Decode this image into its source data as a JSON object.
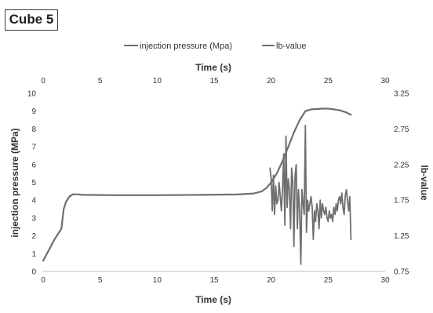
{
  "panel_label": "Cube 5",
  "chart_data": {
    "type": "line",
    "title": "",
    "legend": {
      "placement": "top",
      "entries": [
        "injection pressure (Mpa)",
        "lb-value"
      ]
    },
    "x_axis_top": {
      "label": "Time (s)",
      "range": [
        0,
        30
      ],
      "ticks": [
        0,
        5,
        10,
        15,
        20,
        25,
        30
      ]
    },
    "x_axis_bottom": {
      "label": "Time (s)",
      "range": [
        0,
        30
      ],
      "ticks": [
        0,
        5,
        10,
        15,
        20,
        25,
        30
      ]
    },
    "y_axis_left": {
      "label": "injection pressure (MPa)",
      "range": [
        0,
        10
      ],
      "ticks": [
        0,
        1,
        2,
        3,
        4,
        5,
        6,
        7,
        8,
        9,
        10
      ]
    },
    "y_axis_right": {
      "label": "lb-value",
      "range": [
        0.75,
        3.25
      ],
      "ticks": [
        "0.75",
        "1.25",
        "1.75",
        "2.25",
        "2.75",
        "3.25"
      ]
    },
    "grid": false,
    "series": [
      {
        "name": "injection pressure (Mpa)",
        "axis": "left",
        "color": "#6f6f6f",
        "x": [
          0,
          0.5,
          1.0,
          1.6,
          1.8,
          2.0,
          2.3,
          2.6,
          2.9,
          3.5,
          6,
          10,
          14,
          17,
          18.5,
          19.2,
          19.6,
          20.0,
          20.5,
          21.0,
          21.5,
          22.0,
          22.5,
          23.0,
          23.5,
          24.0,
          24.5,
          25.0,
          25.5,
          26.0,
          26.5,
          27.0
        ],
        "y": [
          0.6,
          1.2,
          1.8,
          2.4,
          3.5,
          3.9,
          4.2,
          4.33,
          4.33,
          4.3,
          4.28,
          4.28,
          4.3,
          4.32,
          4.38,
          4.5,
          4.7,
          5.0,
          5.5,
          6.2,
          7.0,
          7.8,
          8.5,
          9.0,
          9.1,
          9.12,
          9.14,
          9.14,
          9.1,
          9.05,
          8.95,
          8.8
        ]
      },
      {
        "name": "lb-value",
        "axis": "right",
        "color": "#6f6f6f",
        "x": [
          19.9,
          20.0,
          20.1,
          20.2,
          20.3,
          20.4,
          20.5,
          20.6,
          20.7,
          20.8,
          20.9,
          21.0,
          21.1,
          21.2,
          21.3,
          21.4,
          21.5,
          21.6,
          21.7,
          21.8,
          21.9,
          22.0,
          22.1,
          22.2,
          22.3,
          22.4,
          22.5,
          22.6,
          22.7,
          22.8,
          22.9,
          23.0,
          23.1,
          23.2,
          23.3,
          23.4,
          23.5,
          23.6,
          23.7,
          23.8,
          23.9,
          24.0,
          24.1,
          24.2,
          24.3,
          24.4,
          24.5,
          24.6,
          24.7,
          24.8,
          24.9,
          25.0,
          25.1,
          25.2,
          25.3,
          25.4,
          25.5,
          25.6,
          25.7,
          25.8,
          25.9,
          26.0,
          26.1,
          26.2,
          26.3,
          26.4,
          26.5,
          26.6,
          26.7,
          26.8,
          26.9,
          27.0
        ],
        "y": [
          2.2,
          2.05,
          1.6,
          2.1,
          1.55,
          1.95,
          1.7,
          1.75,
          2.0,
          1.8,
          1.6,
          1.9,
          2.4,
          1.4,
          2.65,
          1.65,
          2.05,
          1.9,
          1.35,
          2.2,
          2.0,
          1.1,
          2.1,
          2.25,
          1.35,
          1.9,
          1.6,
          0.85,
          1.9,
          1.7,
          1.55,
          2.8,
          1.3,
          1.75,
          1.6,
          1.7,
          1.8,
          1.65,
          1.2,
          1.6,
          1.45,
          1.7,
          1.6,
          1.35,
          1.75,
          1.5,
          1.7,
          1.6,
          1.55,
          1.65,
          1.5,
          1.45,
          1.6,
          1.5,
          1.55,
          1.45,
          1.65,
          1.55,
          1.7,
          1.6,
          1.75,
          1.8,
          1.7,
          1.85,
          1.65,
          1.55,
          1.8,
          1.9,
          1.75,
          1.6,
          1.8,
          1.2
        ]
      }
    ]
  }
}
